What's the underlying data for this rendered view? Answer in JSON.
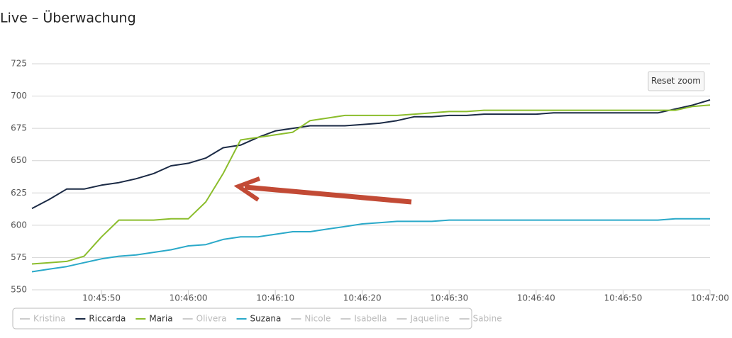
{
  "title": "Live – Überwachung",
  "button": "Reset zoom",
  "chart_data": {
    "type": "line",
    "x": [
      "10:45:42",
      "10:45:44",
      "10:45:46",
      "10:45:48",
      "10:45:50",
      "10:45:52",
      "10:45:54",
      "10:45:56",
      "10:45:58",
      "10:46:00",
      "10:46:02",
      "10:46:04",
      "10:46:06",
      "10:46:08",
      "10:46:10",
      "10:46:12",
      "10:46:14",
      "10:46:16",
      "10:46:18",
      "10:46:20",
      "10:46:22",
      "10:46:24",
      "10:46:26",
      "10:46:28",
      "10:46:30",
      "10:46:32",
      "10:46:34",
      "10:46:36",
      "10:46:38",
      "10:46:40",
      "10:46:42",
      "10:46:44",
      "10:46:46",
      "10:46:48",
      "10:46:50",
      "10:46:52",
      "10:46:54",
      "10:46:56",
      "10:46:58",
      "10:47:00"
    ],
    "xlim": [
      "10:45:42",
      "10:47:00"
    ],
    "xticks": [
      "10:45:50",
      "10:46:00",
      "10:46:10",
      "10:46:20",
      "10:46:30",
      "10:46:40",
      "10:46:50",
      "10:47:00"
    ],
    "ylim": [
      550,
      725
    ],
    "yticks": [
      550,
      575,
      600,
      625,
      650,
      675,
      700,
      725
    ],
    "grid": true,
    "series": [
      {
        "name": "Kristina",
        "visible": false
      },
      {
        "name": "Riccarda",
        "visible": true,
        "color": "#1b2a45",
        "values": [
          613,
          620,
          628,
          628,
          631,
          633,
          636,
          640,
          646,
          648,
          652,
          660,
          662,
          668,
          673,
          675,
          677,
          677,
          677,
          678,
          679,
          681,
          684,
          684,
          685,
          685,
          686,
          686,
          686,
          686,
          687,
          687,
          687,
          687,
          687,
          687,
          687,
          690,
          693,
          697
        ]
      },
      {
        "name": "Maria",
        "visible": true,
        "color": "#8bbd2c",
        "values": [
          570,
          571,
          572,
          576,
          591,
          604,
          604,
          604,
          605,
          605,
          618,
          640,
          666,
          668,
          670,
          672,
          681,
          683,
          685,
          685,
          685,
          685,
          686,
          687,
          688,
          688,
          689,
          689,
          689,
          689,
          689,
          689,
          689,
          689,
          689,
          689,
          689,
          689,
          692,
          693
        ]
      },
      {
        "name": "Olivera",
        "visible": false
      },
      {
        "name": "Suzana",
        "visible": true,
        "color": "#2aa9c9",
        "values": [
          564,
          566,
          568,
          571,
          574,
          576,
          577,
          579,
          581,
          584,
          585,
          589,
          591,
          591,
          593,
          595,
          595,
          597,
          599,
          601,
          602,
          603,
          603,
          603,
          604,
          604,
          604,
          604,
          604,
          604,
          604,
          604,
          604,
          604,
          604,
          604,
          604,
          605,
          605,
          605
        ]
      },
      {
        "name": "Nicole",
        "visible": false
      },
      {
        "name": "Isabella",
        "visible": false
      },
      {
        "name": "Jaqueline",
        "visible": false
      },
      {
        "name": "Sabine",
        "visible": false
      }
    ]
  }
}
